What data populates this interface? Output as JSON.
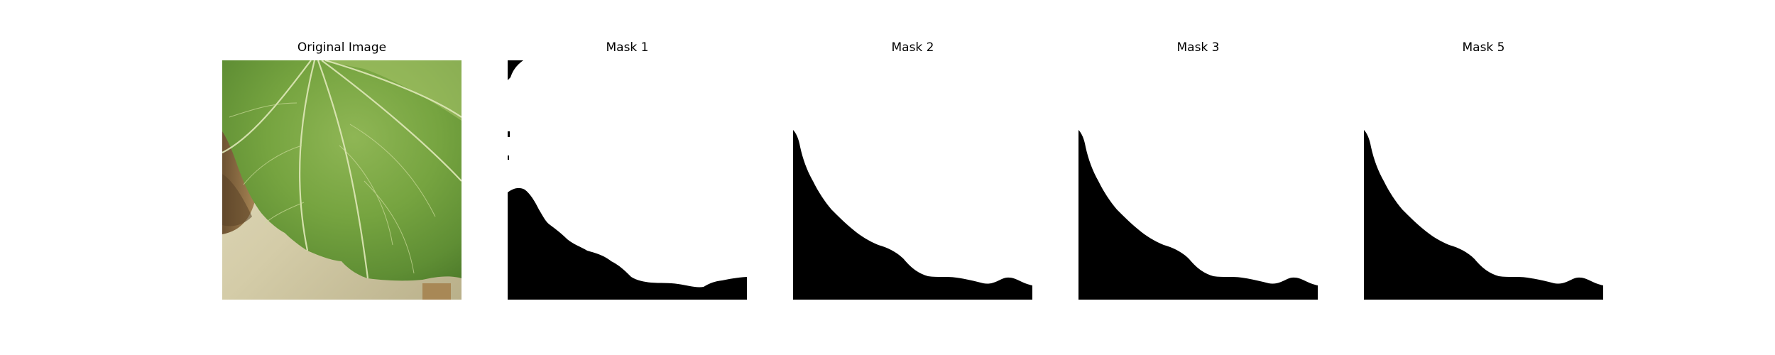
{
  "figure": {
    "panels": [
      {
        "id": "original",
        "title": "Original Image"
      },
      {
        "id": "mask1",
        "title": "Mask 1"
      },
      {
        "id": "mask2",
        "title": "Mask 2"
      },
      {
        "id": "mask3",
        "title": "Mask 3"
      },
      {
        "id": "mask5",
        "title": "Mask 5"
      }
    ]
  },
  "colors": {
    "mask_foreground": "#ffffff",
    "mask_background": "#000000",
    "leaf_light": "#a9c46c",
    "leaf_dark": "#5f8e34",
    "floor": "#d6cfac",
    "stem": "#8a6a3c"
  }
}
